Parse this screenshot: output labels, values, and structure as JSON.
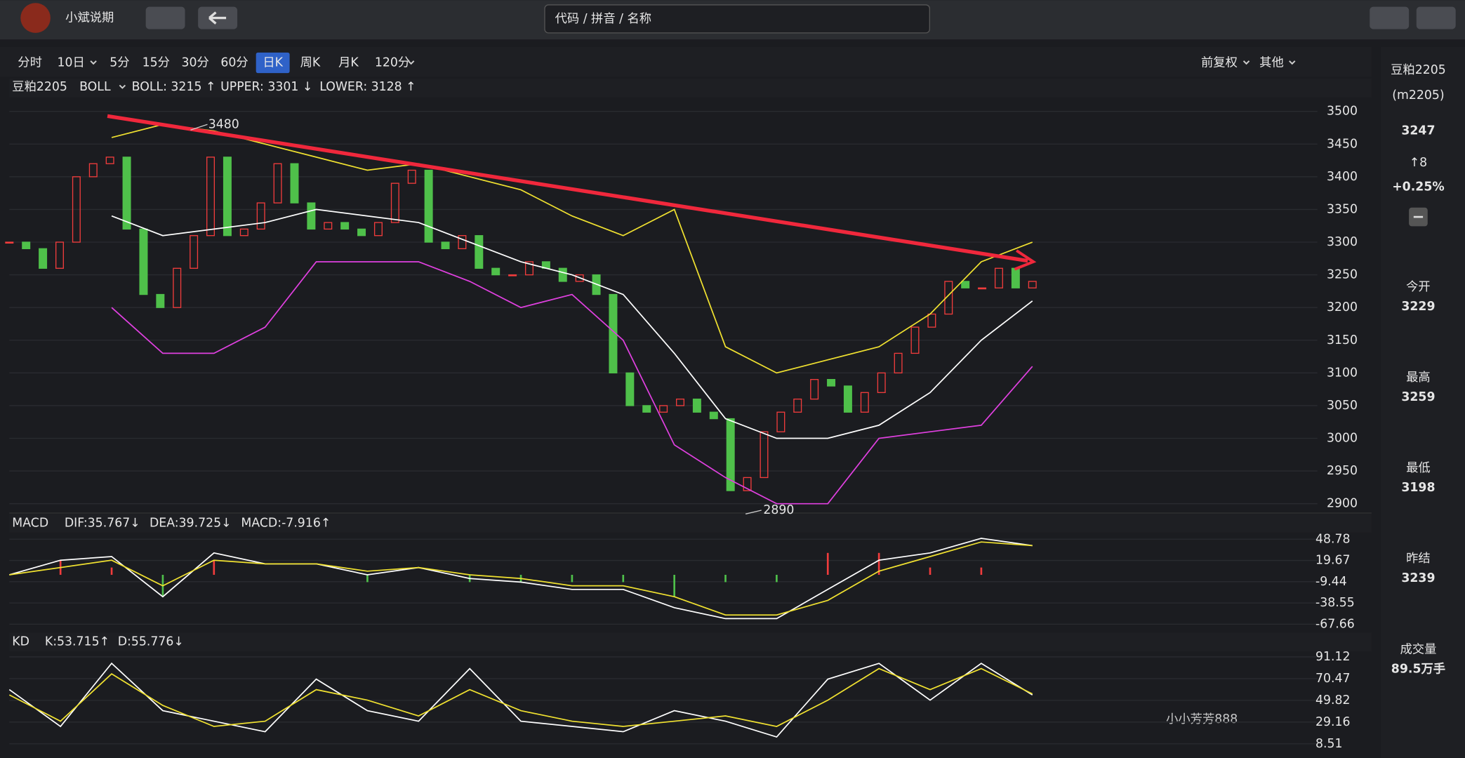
{
  "topbar": {
    "app_name": "小斌说期",
    "search_placeholder": "代码 / 拼音 / 名称"
  },
  "toolbar": {
    "periods": [
      "分时",
      "10日",
      "5分",
      "15分",
      "30分",
      "60分",
      "日K",
      "周K",
      "月K",
      "120分"
    ],
    "selected": 6,
    "right_tools": [
      "前复权",
      "其他"
    ]
  },
  "chart": {
    "symbol": "豆粕2205",
    "indicator": "BOLL",
    "boll": "BOLL: 3215 ↑",
    "upper": "UPPER: 3301 ↓",
    "lower": "LOWER: 3128 ↑",
    "ylim": [
      2900,
      3500
    ],
    "yticks": [
      3500,
      3450,
      3400,
      3350,
      3300,
      3250,
      3200,
      3150,
      3100,
      3050,
      3000,
      2950,
      2900
    ],
    "high_mark": 3480,
    "low_mark": 2890,
    "close": [
      3300,
      3290,
      3260,
      3300,
      3400,
      3420,
      3430,
      3320,
      3220,
      3200,
      3260,
      3310,
      3430,
      3310,
      3320,
      3360,
      3420,
      3360,
      3320,
      3330,
      3320,
      3310,
      3330,
      3390,
      3410,
      3300,
      3290,
      3310,
      3260,
      3250,
      3250,
      3270,
      3260,
      3240,
      3250,
      3220,
      3100,
      3050,
      3040,
      3050,
      3060,
      3040,
      3030,
      2920,
      2940,
      3010,
      3040,
      3060,
      3090,
      3080,
      3040,
      3070,
      3100,
      3130,
      3170,
      3190,
      3240,
      3230,
      3230,
      3260,
      3230,
      3240
    ],
    "boll_upper": [
      null,
      null,
      3460,
      3480,
      3470,
      3450,
      3430,
      3410,
      3420,
      3400,
      3380,
      3340,
      3310,
      3350,
      3140,
      3100,
      3120,
      3140,
      3190,
      3270,
      3300
    ],
    "boll_mid": [
      null,
      null,
      3340,
      3310,
      3320,
      3330,
      3350,
      3340,
      3330,
      3300,
      3270,
      3250,
      3220,
      3130,
      3030,
      3000,
      3000,
      3020,
      3070,
      3150,
      3210
    ],
    "boll_lower": [
      null,
      null,
      3200,
      3130,
      3130,
      3170,
      3270,
      3270,
      3270,
      3240,
      3200,
      3220,
      3150,
      2990,
      2940,
      2900,
      2900,
      3000,
      3010,
      3020,
      3110
    ]
  },
  "macd": {
    "label": "MACD",
    "dif": "DIF:35.767↓",
    "dea": "DEA:39.725↓",
    "macd": "MACD:-7.916↑",
    "ylim": [
      -67.66,
      48.78
    ],
    "yticks": [
      48.78,
      19.67,
      -9.44,
      -38.55,
      -67.66
    ],
    "dif_values": [
      0,
      20,
      25,
      -30,
      30,
      15,
      15,
      0,
      10,
      -5,
      -10,
      -20,
      -20,
      -45,
      -60,
      -60,
      -20,
      20,
      30,
      50,
      40
    ],
    "dea_values": [
      0,
      10,
      20,
      -15,
      20,
      15,
      15,
      5,
      10,
      0,
      -5,
      -15,
      -15,
      -30,
      -55,
      -55,
      -35,
      5,
      25,
      45,
      40
    ],
    "hist_values": [
      0,
      20,
      10,
      -30,
      20,
      0,
      0,
      -10,
      0,
      -10,
      -10,
      -10,
      -10,
      -30,
      -10,
      -10,
      30,
      30,
      10,
      10,
      0
    ]
  },
  "kd": {
    "label": "KD",
    "k": "K:53.715↑",
    "d": "D:55.776↓",
    "ylim": [
      8.51,
      91.12
    ],
    "yticks": [
      91.12,
      70.47,
      49.82,
      29.16,
      8.51
    ],
    "k_values": [
      60,
      25,
      85,
      40,
      30,
      20,
      70,
      40,
      30,
      80,
      30,
      25,
      20,
      40,
      30,
      15,
      70,
      85,
      50,
      85,
      55
    ],
    "d_values": [
      55,
      30,
      75,
      45,
      25,
      30,
      60,
      50,
      35,
      60,
      40,
      30,
      25,
      30,
      35,
      25,
      50,
      80,
      60,
      80,
      56
    ]
  },
  "quote": {
    "symbol": "豆粕2205",
    "code": "(m2205)",
    "price": "3247",
    "change": "↑8",
    "pct": "+0.25%",
    "stats": [
      {
        "label": "今开",
        "value": "3229"
      },
      {
        "label": "最高",
        "value": "3259"
      },
      {
        "label": "最低",
        "value": "3198"
      },
      {
        "label": "昨结",
        "value": "3239"
      },
      {
        "label": "成交量",
        "value": "89.5万手"
      }
    ]
  },
  "watermark": "小小芳芳888"
}
